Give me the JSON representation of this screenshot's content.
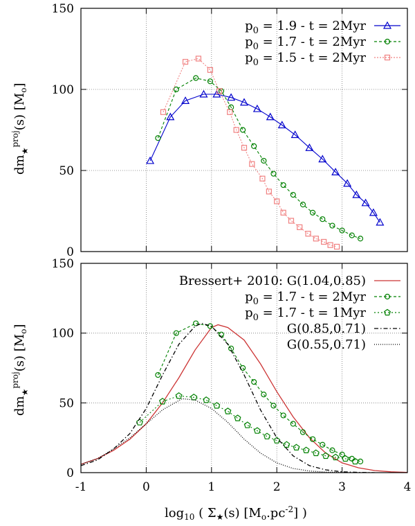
{
  "chart_data": [
    {
      "type": "line",
      "panel": "top",
      "ylabel": "dm★proj(s) [Mo]",
      "xlim": [
        -1,
        4
      ],
      "ylim": [
        0,
        150
      ],
      "xticks": [
        -1,
        0,
        1,
        2,
        3,
        4
      ],
      "yticks": [
        0,
        50,
        100,
        150
      ],
      "ytick_labels": [
        "0",
        "50",
        "100",
        "150"
      ],
      "grid": true,
      "legend_position": "top-right",
      "series": [
        {
          "name": "p0 = 1.9 - t = 2Myr",
          "color": "#0000cc",
          "marker": "triangle",
          "dash": "",
          "x": [
            0.06,
            0.37,
            0.6,
            0.88,
            1.08,
            1.3,
            1.5,
            1.7,
            1.9,
            2.08,
            2.28,
            2.5,
            2.7,
            2.9,
            3.08,
            3.22,
            3.36,
            3.48,
            3.58
          ],
          "y": [
            56,
            83,
            93,
            97,
            97,
            95,
            92,
            88,
            83,
            78,
            72,
            64,
            57,
            49,
            42,
            35,
            30,
            24,
            18
          ]
        },
        {
          "name": "p0 = 1.7 - t = 2Myr",
          "color": "#008000",
          "marker": "circle",
          "dash": "4 3",
          "x": [
            0.18,
            0.46,
            0.76,
            0.98,
            1.15,
            1.3,
            1.48,
            1.65,
            1.8,
            1.95,
            2.1,
            2.25,
            2.4,
            2.55,
            2.7,
            2.85,
            3,
            3.15,
            3.28
          ],
          "y": [
            70,
            100,
            107,
            105,
            99,
            89,
            75,
            65,
            56,
            48,
            41,
            35,
            29,
            24,
            20,
            16,
            13,
            10,
            8
          ]
        },
        {
          "name": "p0 = 1.5 - t = 2Myr",
          "color": "#f08080",
          "marker": "square",
          "dash": "2 2",
          "x": [
            0.26,
            0.6,
            0.8,
            0.98,
            1.12,
            1.28,
            1.38,
            1.5,
            1.62,
            1.78,
            1.88,
            2,
            2.1,
            2.22,
            2.35,
            2.48,
            2.6,
            2.72,
            2.82,
            2.92
          ],
          "y": [
            86,
            117,
            119,
            112,
            99,
            86,
            75,
            64,
            54,
            45,
            37,
            31,
            24,
            19,
            15,
            11,
            8,
            6,
            4,
            3
          ]
        }
      ]
    },
    {
      "type": "line",
      "panel": "bottom",
      "xlabel": "log10 ( Σ★(s) [Mo.pc-2] )",
      "ylabel": "dm★proj(s) [Mo]",
      "xlim": [
        -1,
        4
      ],
      "ylim": [
        0,
        150
      ],
      "xticks": [
        -1,
        0,
        1,
        2,
        3,
        4
      ],
      "xtick_labels": [
        "-1",
        "0",
        "1",
        "2",
        "3",
        "4"
      ],
      "yticks": [
        0,
        50,
        100,
        150
      ],
      "ytick_labels": [
        "0",
        "50",
        "100",
        "150"
      ],
      "grid": true,
      "legend_position": "top-right",
      "series": [
        {
          "name": "Bressert+ 2010: G(1.04,0.85)",
          "color": "#cc3333",
          "marker": "none",
          "dash": "",
          "x": [
            -1,
            -0.75,
            -0.5,
            -0.25,
            0,
            0.25,
            0.5,
            0.75,
            1,
            1.1,
            1.25,
            1.5,
            1.75,
            2,
            2.25,
            2.5,
            2.75,
            3,
            3.25,
            3.5,
            3.75,
            4
          ],
          "y": [
            6,
            10,
            16,
            24,
            35,
            50,
            68,
            88,
            104,
            106,
            104,
            95,
            78,
            58,
            40,
            25,
            14,
            7,
            3.5,
            1.5,
            0.6,
            0.2
          ]
        },
        {
          "name": "p0 = 1.7 - t = 2Myr",
          "color": "#008000",
          "marker": "circle",
          "dash": "4 3",
          "x": [
            0.18,
            0.46,
            0.76,
            0.98,
            1.15,
            1.3,
            1.48,
            1.65,
            1.8,
            1.95,
            2.1,
            2.25,
            2.4,
            2.55,
            2.7,
            2.85,
            3,
            3.15,
            3.28
          ],
          "y": [
            70,
            100,
            107,
            105,
            99,
            89,
            75,
            65,
            56,
            48,
            41,
            35,
            29,
            24,
            20,
            16,
            13,
            10,
            8
          ]
        },
        {
          "name": "p0 = 1.7 - t = 1Myr",
          "color": "#008000",
          "marker": "pentagon",
          "dash": "2 3",
          "x": [
            -0.1,
            0.25,
            0.5,
            0.73,
            0.92,
            1.08,
            1.25,
            1.4,
            1.55,
            1.7,
            1.85,
            2,
            2.15,
            2.3,
            2.45,
            2.6,
            2.75,
            2.9,
            3.05,
            3.2
          ],
          "y": [
            36,
            51,
            55,
            54,
            52,
            48,
            44,
            39,
            34,
            30,
            26,
            23,
            20,
            18,
            16,
            14,
            12,
            11,
            10,
            8
          ]
        },
        {
          "name": "G(0.85,0.71)",
          "color": "#000000",
          "marker": "none",
          "dash": "6 3 1.5 3",
          "x": [
            -1,
            -0.75,
            -0.5,
            -0.25,
            0,
            0.25,
            0.5,
            0.75,
            0.85,
            1,
            1.25,
            1.5,
            1.75,
            2,
            2.25,
            2.5,
            2.75,
            3,
            3.25,
            3.5
          ],
          "y": [
            5,
            9,
            17,
            28,
            46,
            70,
            92,
            105,
            107,
            105,
            92,
            70,
            45,
            25,
            12,
            5,
            2,
            0.6,
            0.2,
            0
          ]
        },
        {
          "name": "G(0.55,0.71)",
          "color": "#000000",
          "marker": "none",
          "dash": "1 2",
          "x": [
            -1,
            -0.75,
            -0.5,
            -0.25,
            0,
            0.25,
            0.55,
            0.75,
            1,
            1.25,
            1.5,
            1.75,
            2,
            2.25,
            2.5,
            2.75,
            3
          ],
          "y": [
            6,
            10,
            17,
            25,
            35,
            45,
            53,
            52,
            46,
            36,
            24,
            14,
            7,
            3,
            1.2,
            0.4,
            0.1
          ]
        }
      ]
    }
  ]
}
